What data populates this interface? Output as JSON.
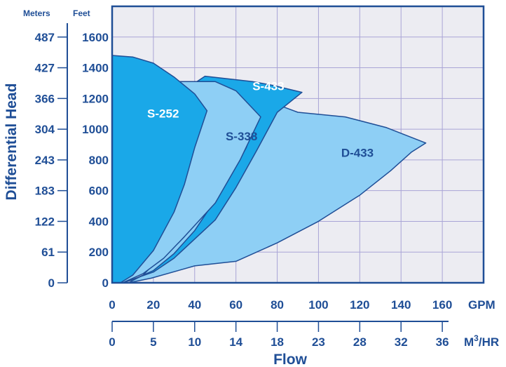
{
  "chart_data": {
    "type": "area",
    "title": "",
    "xlabel": "Flow",
    "ylabel": "Differential Head",
    "x_unit_primary": "GPM",
    "x_unit_secondary": "M3/HR",
    "y_unit_primary": "Feet",
    "y_unit_secondary": "Meters",
    "xlim": [
      0,
      180
    ],
    "ylim": [
      0,
      1800
    ],
    "grid": true,
    "x_ticks": [
      0,
      20,
      40,
      60,
      80,
      100,
      120,
      140,
      160
    ],
    "x_tick_labels": [
      "0",
      "20",
      "40",
      "60",
      "80",
      "100",
      "120",
      "140",
      "160"
    ],
    "x2_ticks": [
      {
        "label": "0",
        "gpm": 0
      },
      {
        "label": "5",
        "gpm": 20
      },
      {
        "label": "10",
        "gpm": 40
      },
      {
        "label": "14",
        "gpm": 60
      },
      {
        "label": "18",
        "gpm": 80
      },
      {
        "label": "23",
        "gpm": 100
      },
      {
        "label": "28",
        "gpm": 120
      },
      {
        "label": "32",
        "gpm": 140
      },
      {
        "label": "36",
        "gpm": 160
      }
    ],
    "y_ticks": [
      0,
      200,
      400,
      600,
      800,
      1000,
      1200,
      1400,
      1600
    ],
    "y_tick_labels": [
      "0",
      "200",
      "400",
      "600",
      "800",
      "1000",
      "1200",
      "1400",
      "1600"
    ],
    "y2_ticks": [
      {
        "label": "0",
        "feet": 0
      },
      {
        "label": "61",
        "feet": 200
      },
      {
        "label": "122",
        "feet": 400
      },
      {
        "label": "183",
        "feet": 600
      },
      {
        "label": "243",
        "feet": 800
      },
      {
        "label": "304",
        "feet": 1000
      },
      {
        "label": "366",
        "feet": 1200
      },
      {
        "label": "427",
        "feet": 1400
      },
      {
        "label": "487",
        "feet": 1600
      }
    ],
    "series": [
      {
        "name": "D-433",
        "color": "#8ecff5",
        "label_at": [
          111,
          820
        ],
        "label_color": "#1f4e96",
        "points": [
          [
            8,
            0
          ],
          [
            19,
            30
          ],
          [
            40,
            110
          ],
          [
            60,
            140
          ],
          [
            80,
            260
          ],
          [
            100,
            400
          ],
          [
            120,
            570
          ],
          [
            135,
            730
          ],
          [
            145,
            850
          ],
          [
            152,
            910
          ],
          [
            133,
            1010
          ],
          [
            113,
            1080
          ],
          [
            90,
            1110
          ],
          [
            88,
            1120
          ],
          [
            80,
            1160
          ],
          [
            60,
            1020
          ],
          [
            50,
            870
          ],
          [
            40,
            610
          ],
          [
            33,
            440
          ],
          [
            30,
            350
          ],
          [
            25,
            210
          ],
          [
            20,
            120
          ],
          [
            15,
            50
          ],
          [
            10,
            15
          ],
          [
            8,
            0
          ]
        ]
      },
      {
        "name": "S-433",
        "color": "#1aa8e8",
        "label_at": [
          68,
          1255
        ],
        "label_color": "#ffffff",
        "points": [
          [
            5,
            0
          ],
          [
            20,
            70
          ],
          [
            30,
            160
          ],
          [
            50,
            410
          ],
          [
            60,
            620
          ],
          [
            70,
            860
          ],
          [
            80,
            1110
          ],
          [
            92,
            1240
          ],
          [
            78,
            1285
          ],
          [
            68,
            1310
          ],
          [
            45,
            1345
          ],
          [
            40,
            1300
          ],
          [
            40,
            1240
          ],
          [
            52,
            1140
          ],
          [
            62,
            1100
          ],
          [
            70,
            1070
          ],
          [
            65,
            880
          ],
          [
            55,
            640
          ],
          [
            45,
            440
          ],
          [
            40,
            340
          ],
          [
            30,
            190
          ],
          [
            20,
            80
          ],
          [
            10,
            20
          ],
          [
            5,
            0
          ]
        ]
      },
      {
        "name": "S-338",
        "color": "#8ecff5",
        "label_at": [
          55,
          928
        ],
        "label_color": "#1f4e96",
        "points": [
          [
            5,
            0
          ],
          [
            15,
            60
          ],
          [
            25,
            160
          ],
          [
            35,
            300
          ],
          [
            50,
            520
          ],
          [
            62,
            800
          ],
          [
            72,
            1080
          ],
          [
            60,
            1250
          ],
          [
            50,
            1310
          ],
          [
            35,
            1310
          ],
          [
            20,
            1310
          ],
          [
            15,
            1300
          ],
          [
            10,
            1280
          ],
          [
            5,
            1260
          ],
          [
            5,
            0
          ]
        ]
      },
      {
        "name": "S-252",
        "color": "#1aa8e8",
        "label_at": [
          17,
          1077
        ],
        "label_color": "#ffffff",
        "points": [
          [
            0,
            1480
          ],
          [
            10,
            1470
          ],
          [
            20,
            1430
          ],
          [
            30,
            1340
          ],
          [
            40,
            1230
          ],
          [
            46,
            1120
          ],
          [
            40,
            880
          ],
          [
            35,
            640
          ],
          [
            30,
            460
          ],
          [
            20,
            210
          ],
          [
            10,
            50
          ],
          [
            4,
            0
          ],
          [
            0,
            0
          ]
        ]
      }
    ]
  }
}
